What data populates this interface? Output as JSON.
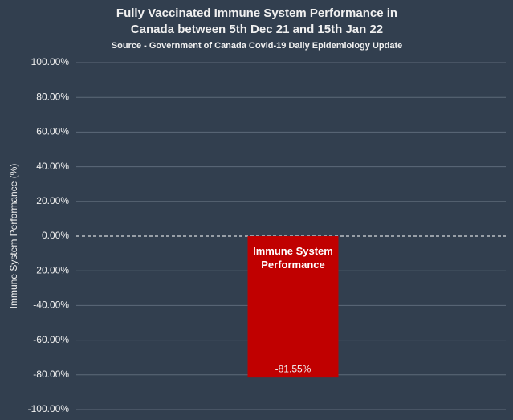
{
  "chart_data": {
    "type": "bar",
    "title": [
      "Fully Vaccinated Immune System Performance in",
      "Canada between 5th Dec 21 and 15th Jan 22"
    ],
    "subtitle": "Source - Government of Canada Covid-19 Daily Epidemiology Update",
    "y_label": "Immune System Performance  (%)",
    "categories": [
      "Immune System Performance"
    ],
    "values": [
      -81.55
    ],
    "value_labels": [
      "-81.55%"
    ],
    "color": "#c00000",
    "ylim": [
      -100,
      100
    ],
    "yticks": [
      {
        "value": -100,
        "label": "-100.00%"
      },
      {
        "value": -80,
        "label": "-80.00%"
      },
      {
        "value": -60,
        "label": "-60.00%"
      },
      {
        "value": -40,
        "label": "-40.00%"
      },
      {
        "value": -20,
        "label": "-20.00%"
      },
      {
        "value": 0,
        "label": "0.00%"
      },
      {
        "value": 20,
        "label": "20.00%"
      },
      {
        "value": 40,
        "label": "40.00%"
      },
      {
        "value": 60,
        "label": "60.00%"
      },
      {
        "value": 80,
        "label": "80.00%"
      },
      {
        "value": 100,
        "label": "100.00%"
      }
    ],
    "grid": true
  }
}
